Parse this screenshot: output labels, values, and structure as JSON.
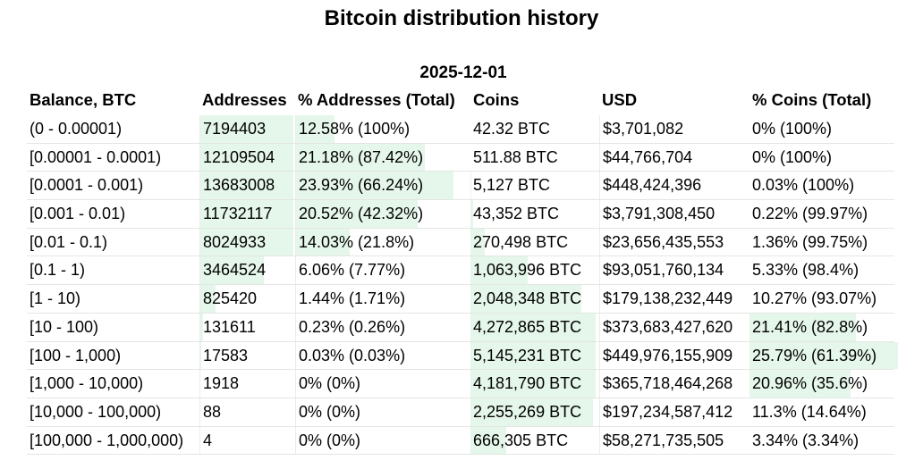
{
  "title": "Bitcoin distribution history",
  "date": "2025-12-01",
  "headers": [
    "Balance, BTC",
    "Addresses",
    "% Addresses (Total)",
    "Coins",
    "USD",
    "% Coins (Total)"
  ],
  "rows": [
    {
      "balance": "(0 - 0.00001)",
      "addresses": "7194403",
      "pct_addresses": "12.58% (100%)",
      "coins": "42.32 BTC",
      "usd": "$3,701,082",
      "pct_coins": "0% (100%)",
      "addr_share": 0.1258,
      "coins_share": 0.0
    },
    {
      "balance": "[0.00001 - 0.0001)",
      "addresses": "12109504",
      "pct_addresses": "21.18% (87.42%)",
      "coins": "511.88 BTC",
      "usd": "$44,766,704",
      "pct_coins": "0% (100%)",
      "addr_share": 0.2118,
      "coins_share": 0.0
    },
    {
      "balance": "[0.0001 - 0.001)",
      "addresses": "13683008",
      "pct_addresses": "23.93% (66.24%)",
      "coins": "5,127 BTC",
      "usd": "$448,424,396",
      "pct_coins": "0.03% (100%)",
      "addr_share": 0.2393,
      "coins_share": 0.0003
    },
    {
      "balance": "[0.001 - 0.01)",
      "addresses": "11732117",
      "pct_addresses": "20.52% (42.32%)",
      "coins": "43,352 BTC",
      "usd": "$3,791,308,450",
      "pct_coins": "0.22% (99.97%)",
      "addr_share": 0.2052,
      "coins_share": 0.0022
    },
    {
      "balance": "[0.01 - 0.1)",
      "addresses": "8024933",
      "pct_addresses": "14.03% (21.8%)",
      "coins": "270,498 BTC",
      "usd": "$23,656,435,553",
      "pct_coins": "1.36% (99.75%)",
      "addr_share": 0.1403,
      "coins_share": 0.0136
    },
    {
      "balance": "[0.1 - 1)",
      "addresses": "3464524",
      "pct_addresses": "6.06% (7.77%)",
      "coins": "1,063,996 BTC",
      "usd": "$93,051,760,134",
      "pct_coins": "5.33% (98.4%)",
      "addr_share": 0.0606,
      "coins_share": 0.0533
    },
    {
      "balance": "[1 - 10)",
      "addresses": "825420",
      "pct_addresses": "1.44% (1.71%)",
      "coins": "2,048,348 BTC",
      "usd": "$179,138,232,449",
      "pct_coins": "10.27% (93.07%)",
      "addr_share": 0.0144,
      "coins_share": 0.1027
    },
    {
      "balance": "[10 - 100)",
      "addresses": "131611",
      "pct_addresses": "0.23% (0.26%)",
      "coins": "4,272,865 BTC",
      "usd": "$373,683,427,620",
      "pct_coins": "21.41% (82.8%)",
      "addr_share": 0.0023,
      "coins_share": 0.2141
    },
    {
      "balance": "[100 - 1,000)",
      "addresses": "17583",
      "pct_addresses": "0.03% (0.03%)",
      "coins": "5,145,231 BTC",
      "usd": "$449,976,155,909",
      "pct_coins": "25.79% (61.39%)",
      "addr_share": 0.0003,
      "coins_share": 0.2579
    },
    {
      "balance": "[1,000 - 10,000)",
      "addresses": "1918",
      "pct_addresses": "0% (0%)",
      "coins": "4,181,790 BTC",
      "usd": "$365,718,464,268",
      "pct_coins": "20.96% (35.6%)",
      "addr_share": 0.0,
      "coins_share": 0.2096
    },
    {
      "balance": "[10,000 - 100,000)",
      "addresses": "88",
      "pct_addresses": "0% (0%)",
      "coins": "2,255,269 BTC",
      "usd": "$197,234,587,412",
      "pct_coins": "11.3% (14.64%)",
      "addr_share": 0.0,
      "coins_share": 0.113
    },
    {
      "balance": "[100,000 - 1,000,000)",
      "addresses": "4",
      "pct_addresses": "0% (0%)",
      "coins": "666,305 BTC",
      "usd": "$58,271,735,505",
      "pct_coins": "3.34% (3.34%)",
      "addr_share": 0.0,
      "coins_share": 0.0334
    }
  ],
  "colors": {
    "bar": "#e5f6ea",
    "divider": "#e3e6e3"
  }
}
